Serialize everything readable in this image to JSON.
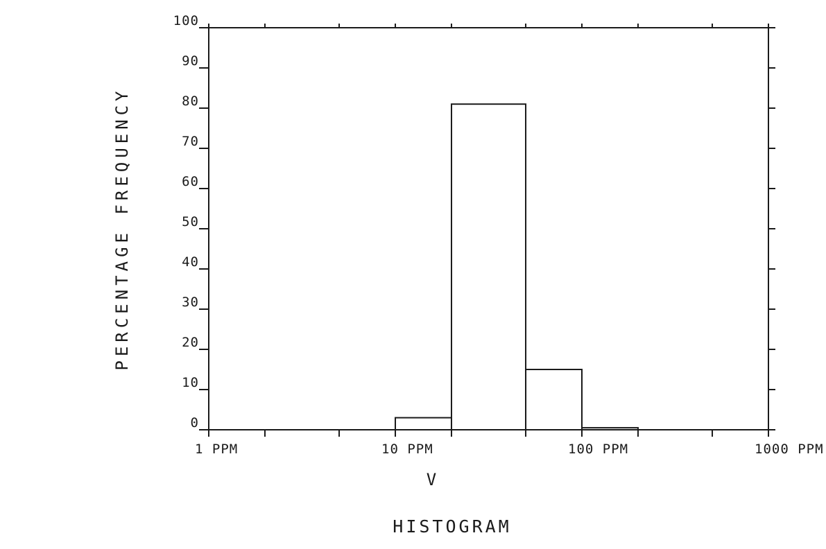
{
  "chart_data": {
    "type": "bar",
    "title": "HISTOGRAM",
    "xlabel": "V",
    "ylabel": "PERCENTAGE FREQUENCY",
    "xscale": "log",
    "xlim": [
      1,
      1000
    ],
    "ylim": [
      0,
      100
    ],
    "x_ticks": [
      1,
      10,
      100,
      1000
    ],
    "x_tick_labels": [
      "1 PPM",
      "10 PPM",
      "100 PPM",
      "1000 PPM"
    ],
    "y_ticks": [
      0,
      10,
      20,
      30,
      40,
      50,
      60,
      70,
      80,
      90,
      100
    ],
    "y_tick_labels": [
      "0",
      "10",
      "20",
      "30",
      "40",
      "50",
      "60",
      "70",
      "80",
      "90",
      "100"
    ],
    "grid": false,
    "bins": [
      {
        "x_start": 10,
        "x_end": 20,
        "value": 3
      },
      {
        "x_start": 20,
        "x_end": 50,
        "value": 81
      },
      {
        "x_start": 50,
        "x_end": 100,
        "value": 15
      },
      {
        "x_start": 100,
        "x_end": 200,
        "value": 0.5
      }
    ]
  },
  "colors": {
    "ink": "#1a1a1a",
    "background": "#ffffff"
  }
}
